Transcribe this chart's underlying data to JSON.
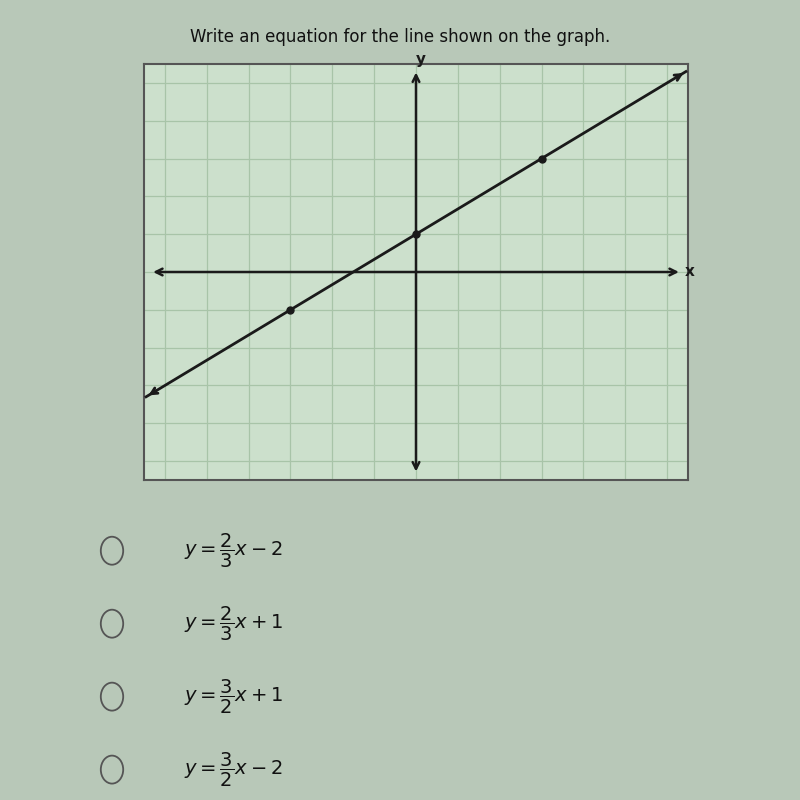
{
  "title": "Write an equation for the line shown on the graph.",
  "title_fontsize": 12,
  "grid_color": "#a8c4a8",
  "grid_bg": "#cce0cc",
  "axis_color": "#1a1a1a",
  "line_color": "#1a1a1a",
  "dot_color": "#1a1a1a",
  "slope_num": 2,
  "slope_den": 3,
  "y_intercept": 1,
  "x_range": [
    -6,
    6
  ],
  "y_range": [
    -5,
    5
  ],
  "dot_points": [
    [
      -3,
      -1
    ],
    [
      0,
      1
    ],
    [
      3,
      3
    ]
  ],
  "fig_bg": "#b8c8b8",
  "graph_border": "#555555",
  "choice_texts": [
    "$y=\\dfrac{2}{3}x-2$",
    "$y=\\dfrac{2}{3}x+1$",
    "$y=\\dfrac{3}{2}x+1$",
    "$y=\\dfrac{3}{2}x-2$"
  ]
}
